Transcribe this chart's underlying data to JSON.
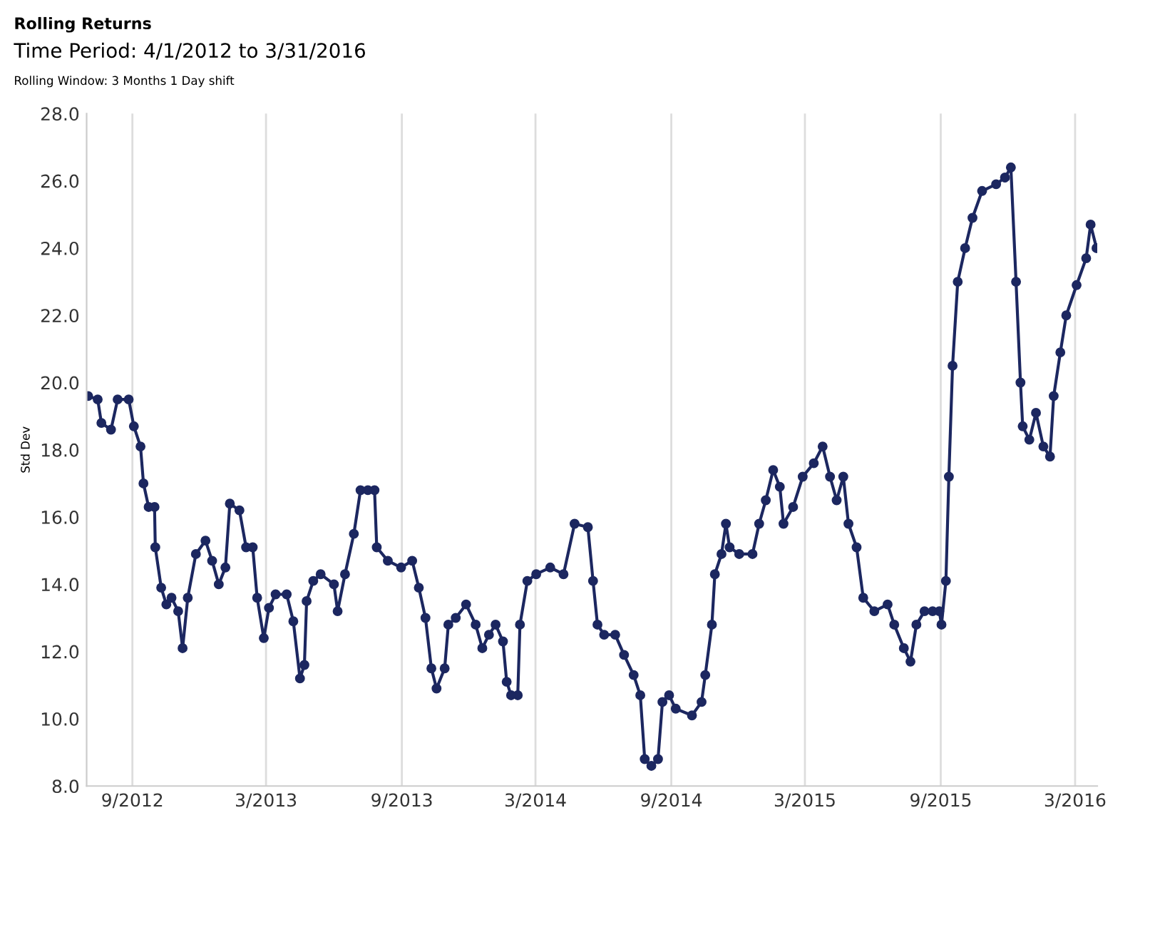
{
  "chart_data": {
    "type": "line",
    "title": "Rolling Returns",
    "subtitle": "Time Period: 4/1/2012 to 3/31/2016",
    "annotations": [
      "Rolling Window: 3 Months 1 Day shift"
    ],
    "ylabel": "Std Dev",
    "xlim": [
      "2012-07-01",
      "2016-03-31"
    ],
    "xticks": [
      {
        "value": "2012-09-01",
        "label": "9/2012"
      },
      {
        "value": "2013-03-01",
        "label": "3/2013"
      },
      {
        "value": "2013-09-01",
        "label": "9/2013"
      },
      {
        "value": "2014-03-01",
        "label": "3/2014"
      },
      {
        "value": "2014-09-01",
        "label": "9/2014"
      },
      {
        "value": "2015-03-01",
        "label": "3/2015"
      },
      {
        "value": "2015-09-01",
        "label": "9/2015"
      },
      {
        "value": "2016-03-01",
        "label": "3/2016"
      }
    ],
    "ylim": [
      8,
      28
    ],
    "yticks": [
      {
        "value": 8,
        "label": "8.0"
      },
      {
        "value": 10,
        "label": "10.0"
      },
      {
        "value": 12,
        "label": "12.0"
      },
      {
        "value": 14,
        "label": "14.0"
      },
      {
        "value": 16,
        "label": "16.0"
      },
      {
        "value": 18,
        "label": "18.0"
      },
      {
        "value": 20,
        "label": "20.0"
      },
      {
        "value": 22,
        "label": "22.0"
      },
      {
        "value": 24,
        "label": "24.0"
      },
      {
        "value": 26,
        "label": "26.0"
      },
      {
        "value": 28,
        "label": "28.0"
      }
    ],
    "grid": "x",
    "marker": "circle",
    "line_style": "solid",
    "x": [
      "2012-07-03",
      "2012-07-16",
      "2012-07-21",
      "2012-08-03",
      "2012-08-12",
      "2012-08-27",
      "2012-09-03",
      "2012-09-12",
      "2012-09-16",
      "2012-09-23",
      "2012-10-01",
      "2012-10-02",
      "2012-10-10",
      "2012-10-17",
      "2012-10-24",
      "2012-11-02",
      "2012-11-08",
      "2012-11-15",
      "2012-11-26",
      "2012-12-09",
      "2012-12-18",
      "2012-12-27",
      "2013-01-05",
      "2013-01-11",
      "2013-01-24",
      "2013-02-02",
      "2013-02-11",
      "2013-02-17",
      "2013-02-26",
      "2013-03-05",
      "2013-03-14",
      "2013-03-29",
      "2013-04-07",
      "2013-04-16",
      "2013-04-22",
      "2013-04-25",
      "2013-05-04",
      "2013-05-14",
      "2013-06-01",
      "2013-06-06",
      "2013-06-16",
      "2013-06-28",
      "2013-07-07",
      "2013-07-17",
      "2013-07-26",
      "2013-07-29",
      "2013-08-13",
      "2013-08-31",
      "2013-09-15",
      "2013-09-24",
      "2013-10-03",
      "2013-10-11",
      "2013-10-18",
      "2013-10-29",
      "2013-11-03",
      "2013-11-13",
      "2013-11-27",
      "2013-12-10",
      "2013-12-19",
      "2013-12-28",
      "2014-01-06",
      "2014-01-16",
      "2014-01-21",
      "2014-01-27",
      "2014-02-05",
      "2014-02-08",
      "2014-02-18",
      "2014-03-02",
      "2014-03-21",
      "2014-04-08",
      "2014-04-23",
      "2014-05-11",
      "2014-05-18",
      "2014-05-24",
      "2014-06-02",
      "2014-06-17",
      "2014-06-29",
      "2014-07-12",
      "2014-07-21",
      "2014-07-27",
      "2014-08-05",
      "2014-08-14",
      "2014-08-20",
      "2014-08-29",
      "2014-09-07",
      "2014-09-29",
      "2014-10-12",
      "2014-10-17",
      "2014-10-26",
      "2014-10-30",
      "2014-11-08",
      "2014-11-14",
      "2014-11-19",
      "2014-12-02",
      "2014-12-20",
      "2014-12-29",
      "2015-01-07",
      "2015-01-17",
      "2015-01-26",
      "2015-01-31",
      "2015-02-13",
      "2015-02-26",
      "2015-03-13",
      "2015-03-25",
      "2015-04-04",
      "2015-04-13",
      "2015-04-22",
      "2015-04-29",
      "2015-05-10",
      "2015-05-19",
      "2015-06-03",
      "2015-06-21",
      "2015-06-30",
      "2015-07-13",
      "2015-07-22",
      "2015-07-30",
      "2015-08-10",
      "2015-08-21",
      "2015-08-30",
      "2015-09-02",
      "2015-09-08",
      "2015-09-12",
      "2015-09-17",
      "2015-09-24",
      "2015-10-04",
      "2015-10-14",
      "2015-10-27",
      "2015-11-15",
      "2015-11-27",
      "2015-12-05",
      "2015-12-12",
      "2015-12-18",
      "2015-12-21",
      "2015-12-30",
      "2016-01-08",
      "2016-01-18",
      "2016-01-27",
      "2016-02-01",
      "2016-02-10",
      "2016-02-18",
      "2016-03-03",
      "2016-03-16",
      "2016-03-22",
      "2016-03-30"
    ],
    "series": [
      {
        "color": "#1c2760",
        "values": [
          19.6,
          19.5,
          18.8,
          18.6,
          19.5,
          19.5,
          18.7,
          18.1,
          17.0,
          16.3,
          16.3,
          15.1,
          13.9,
          13.4,
          13.6,
          13.2,
          12.1,
          13.6,
          14.9,
          15.3,
          14.7,
          14.0,
          14.5,
          16.4,
          16.2,
          15.1,
          15.1,
          13.6,
          12.4,
          13.3,
          13.7,
          13.7,
          12.9,
          11.2,
          11.6,
          13.5,
          14.1,
          14.3,
          14.0,
          13.2,
          14.3,
          15.5,
          16.8,
          16.8,
          16.8,
          15.1,
          14.7,
          14.5,
          14.7,
          13.9,
          13.0,
          11.5,
          10.9,
          11.5,
          12.8,
          13.0,
          13.4,
          12.8,
          12.1,
          12.5,
          12.8,
          12.3,
          11.1,
          10.7,
          10.7,
          12.8,
          14.1,
          14.3,
          14.5,
          14.3,
          15.8,
          15.7,
          14.1,
          12.8,
          12.5,
          12.5,
          11.9,
          11.3,
          10.7,
          8.8,
          8.6,
          8.8,
          10.5,
          10.7,
          10.3,
          10.1,
          10.5,
          11.3,
          12.8,
          14.3,
          14.9,
          15.8,
          15.1,
          14.9,
          14.9,
          15.8,
          16.5,
          17.4,
          16.9,
          15.8,
          16.3,
          17.2,
          17.6,
          18.1,
          17.2,
          16.5,
          17.2,
          15.8,
          15.1,
          13.6,
          13.2,
          13.4,
          12.8,
          12.1,
          11.7,
          12.8,
          13.2,
          13.2,
          13.2,
          12.8,
          14.1,
          17.2,
          20.5,
          23.0,
          24.0,
          24.9,
          25.7,
          25.9,
          26.1,
          26.4,
          23.0,
          20.0,
          18.7,
          18.3,
          19.1,
          18.1,
          17.8,
          19.6,
          20.9,
          22.0,
          22.9,
          23.7,
          24.7,
          24.0
        ]
      }
    ]
  }
}
